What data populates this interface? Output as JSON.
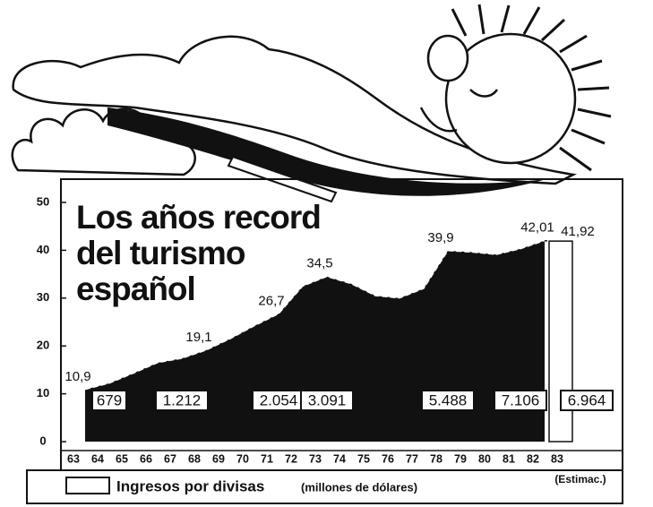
{
  "chart_data": {
    "type": "area",
    "title_lines": [
      "Los años record",
      "del turismo",
      "español"
    ],
    "categories": [
      "63",
      "64",
      "65",
      "66",
      "67",
      "68",
      "69",
      "70",
      "71",
      "72",
      "73",
      "74",
      "75",
      "76",
      "77",
      "78",
      "79",
      "80",
      "81",
      "82",
      "83"
    ],
    "series": [
      {
        "color": "#111111",
        "values": [
          10.9,
          12.2,
          14.3,
          16.5,
          17.4,
          19.1,
          21.5,
          24.2,
          26.7,
          32.5,
          34.5,
          33.0,
          30.5,
          30.0,
          32.0,
          39.9,
          39.6,
          39.1,
          40.3,
          42.01,
          null
        ],
        "value_labels": [
          "10,9",
          null,
          null,
          null,
          null,
          "19,1",
          null,
          null,
          "26,7",
          null,
          "34,5",
          null,
          null,
          null,
          null,
          "39,9",
          null,
          null,
          null,
          "42,01",
          null
        ]
      },
      {
        "name": "Ingresos por divisas",
        "unit_note": "(millones de dólares)",
        "values": [
          null,
          679,
          null,
          null,
          1212,
          null,
          null,
          null,
          2054,
          null,
          3091,
          null,
          null,
          null,
          null,
          5488,
          null,
          null,
          7106,
          null,
          6964
        ],
        "value_labels": [
          null,
          "679",
          null,
          null,
          "1.212",
          null,
          null,
          null,
          "2.054",
          null,
          "3.091",
          null,
          null,
          null,
          null,
          "5.488",
          null,
          null,
          "7.106",
          null,
          "6.964"
        ]
      }
    ],
    "estimate": {
      "category_index": 20,
      "value": 41.92,
      "value_label": "41,92",
      "note": "(Estimac.)"
    },
    "ylim": [
      0,
      55
    ],
    "yticks": [
      0,
      10,
      20,
      30,
      40,
      50
    ]
  }
}
